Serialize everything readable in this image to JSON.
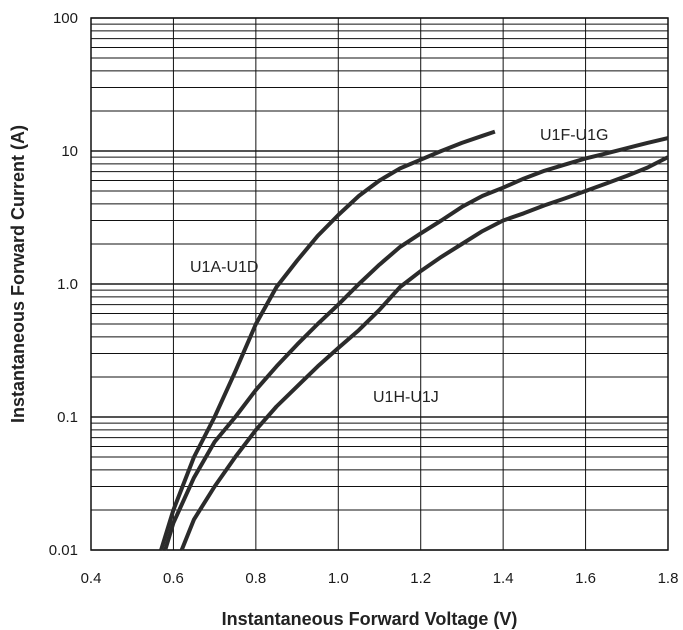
{
  "chart_data": {
    "type": "line",
    "title": "",
    "xlabel": "Instantaneous Forward Voltage (V)",
    "ylabel": "Instantaneous Forward Current (A)",
    "xlim": [
      0.4,
      1.8
    ],
    "ylim": [
      0.01,
      100
    ],
    "yscale": "log",
    "grid": true,
    "x_ticks": [
      "0.4",
      "0.6",
      "0.8",
      "1.0",
      "1.2",
      "1.4",
      "1.6",
      "1.8"
    ],
    "y_ticks": [
      "0.01",
      "0.1",
      "1.0",
      "10",
      "100"
    ],
    "series": [
      {
        "name": "U1A-U1D",
        "x": [
          0.57,
          0.6,
          0.65,
          0.7,
          0.75,
          0.8,
          0.85,
          0.9,
          0.95,
          1.0,
          1.05,
          1.1,
          1.15,
          1.2,
          1.25,
          1.3,
          1.35,
          1.38
        ],
        "y": [
          0.01,
          0.02,
          0.05,
          0.1,
          0.22,
          0.5,
          0.95,
          1.5,
          2.3,
          3.3,
          4.6,
          6.0,
          7.4,
          8.6,
          10.0,
          11.5,
          13.0,
          14.0
        ]
      },
      {
        "name": "U1F-U1G",
        "x": [
          0.58,
          0.6,
          0.65,
          0.7,
          0.75,
          0.8,
          0.85,
          0.9,
          0.95,
          1.0,
          1.05,
          1.1,
          1.15,
          1.2,
          1.25,
          1.3,
          1.35,
          1.4,
          1.45,
          1.5,
          1.55,
          1.6,
          1.65,
          1.7,
          1.75,
          1.8
        ],
        "y": [
          0.01,
          0.016,
          0.035,
          0.065,
          0.1,
          0.16,
          0.24,
          0.35,
          0.5,
          0.7,
          1.0,
          1.4,
          1.9,
          2.4,
          3.0,
          3.8,
          4.6,
          5.3,
          6.2,
          7.1,
          7.9,
          8.8,
          9.6,
          10.5,
          11.5,
          12.5
        ]
      },
      {
        "name": "U1H-U1J",
        "x": [
          0.62,
          0.65,
          0.7,
          0.75,
          0.8,
          0.85,
          0.9,
          0.95,
          1.0,
          1.05,
          1.1,
          1.15,
          1.2,
          1.25,
          1.3,
          1.35,
          1.4,
          1.45,
          1.5,
          1.55,
          1.6,
          1.65,
          1.7,
          1.75,
          1.8
        ],
        "y": [
          0.01,
          0.017,
          0.03,
          0.05,
          0.08,
          0.12,
          0.17,
          0.24,
          0.33,
          0.45,
          0.64,
          0.95,
          1.25,
          1.6,
          2.0,
          2.5,
          3.0,
          3.4,
          3.9,
          4.4,
          5.0,
          5.7,
          6.5,
          7.5,
          9.0
        ]
      }
    ],
    "annotations": [
      "U1A-U1D",
      "U1F-U1G",
      "U1H-U1J"
    ],
    "line_color": "#2b2b2b"
  }
}
